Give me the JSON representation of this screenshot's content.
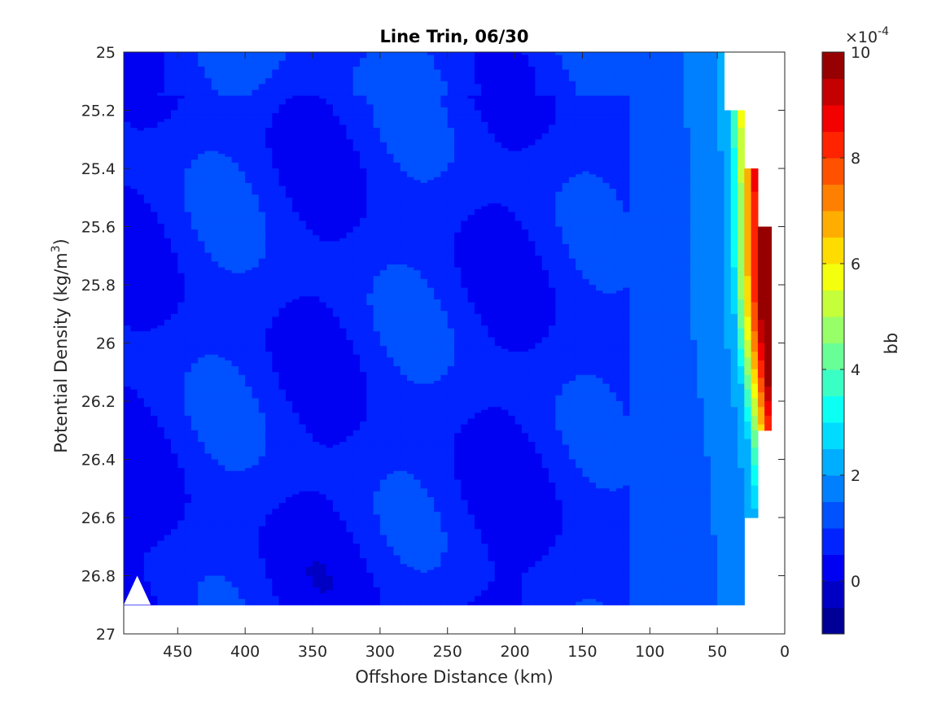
{
  "chart_data": {
    "type": "heatmap",
    "subtype": "filled contour",
    "title": "Line Trin, 06/30",
    "xlabel": "Offshore Distance (km)",
    "ylabel_main": "Potential Density (kg/m",
    "ylabel_sup": "3",
    "ylabel_close": ")",
    "xlim": [
      490,
      0
    ],
    "x_reversed": true,
    "ylim": [
      25,
      27
    ],
    "y_reversed": true,
    "x_ticks": [
      450,
      400,
      350,
      300,
      250,
      200,
      150,
      100,
      50,
      0
    ],
    "x_tick_labels": [
      "450",
      "400",
      "350",
      "300",
      "250",
      "200",
      "150",
      "100",
      "50",
      "0"
    ],
    "y_ticks": [
      25,
      25.2,
      25.4,
      25.6,
      25.8,
      26,
      26.2,
      26.4,
      26.6,
      26.8,
      27
    ],
    "y_tick_labels": [
      "25",
      "25.2",
      "25.4",
      "25.6",
      "25.8",
      "26",
      "26.2",
      "26.4",
      "26.6",
      "26.8",
      "27"
    ],
    "colorbar": {
      "label": "bb",
      "scale_base": "×10",
      "scale_exp": "-4",
      "range": [
        -1,
        10
      ],
      "ticks": [
        0,
        2,
        4,
        6,
        8,
        10
      ],
      "tick_labels": [
        "0",
        "2",
        "4",
        "6",
        "8",
        "10"
      ],
      "levels": [
        -1,
        -0.5,
        0,
        0.5,
        1,
        1.5,
        2,
        2.5,
        3,
        3.5,
        4,
        4.5,
        5,
        5.5,
        6,
        6.5,
        7,
        7.5,
        8,
        8.5,
        9,
        9.5,
        10
      ],
      "colormap": "jet"
    },
    "description_values": {
      "offshore_background_bb": 1.0,
      "nearshore_max_bb": 9.5,
      "front_distance_km": [
        100,
        20
      ]
    }
  }
}
